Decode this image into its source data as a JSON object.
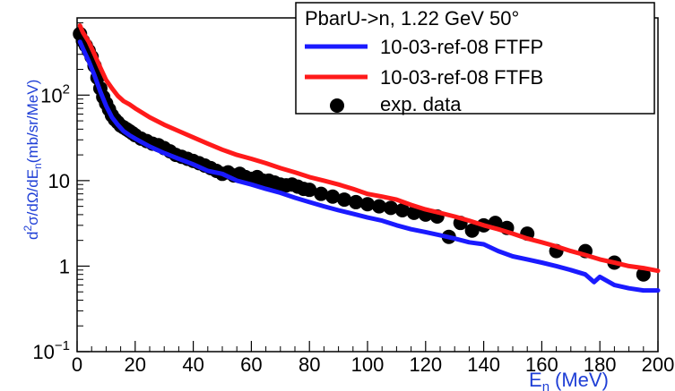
{
  "chart_data": {
    "type": "line",
    "title": "PbarU->n, 1.22 GeV 50°",
    "xlabel_main": "E",
    "xlabel_sub": "n",
    "xlabel_unit": "(MeV)",
    "ylabel_parts": [
      "d",
      "2",
      "σ/dΩ/dE",
      "n",
      "(mb/sr/MeV)"
    ],
    "xlim": [
      0,
      200
    ],
    "ylim": [
      0.1,
      800
    ],
    "yscale": "log",
    "x_ticks": [
      0,
      20,
      40,
      60,
      80,
      100,
      120,
      140,
      160,
      180,
      200
    ],
    "y_tick_labels": [
      {
        "value": 0.1,
        "base": "10",
        "exp": "−1"
      },
      {
        "value": 1,
        "base": "1",
        "exp": ""
      },
      {
        "value": 10,
        "base": "10",
        "exp": ""
      },
      {
        "value": 100,
        "base": "10",
        "exp": "2"
      }
    ],
    "legend_position": "top-right",
    "series": [
      {
        "name": "10-03-ref-08 FTFP",
        "kind": "line",
        "color": "#1a1aff",
        "x": [
          1,
          2,
          4,
          6,
          8,
          10,
          12,
          14,
          16,
          18,
          20,
          25,
          30,
          35,
          40,
          45,
          50,
          55,
          60,
          65,
          70,
          75,
          80,
          85,
          90,
          95,
          100,
          105,
          110,
          115,
          120,
          125,
          130,
          135,
          140,
          145,
          150,
          155,
          160,
          165,
          170,
          175,
          178,
          180,
          185,
          190,
          195,
          200
        ],
        "y": [
          420,
          350,
          250,
          170,
          110,
          75,
          55,
          45,
          38,
          34,
          31,
          25,
          21,
          18,
          15.5,
          13,
          12,
          10,
          9,
          8,
          7.2,
          6.3,
          5.6,
          5,
          4.5,
          4.1,
          3.7,
          3.4,
          3,
          2.7,
          2.5,
          2.3,
          2.1,
          1.9,
          1.8,
          1.5,
          1.3,
          1.2,
          1.1,
          1,
          0.9,
          0.8,
          0.65,
          0.75,
          0.6,
          0.55,
          0.52,
          0.52
        ]
      },
      {
        "name": "10-03-ref-08 FTFB",
        "kind": "line",
        "color": "#ff1a1a",
        "x": [
          1,
          2,
          4,
          6,
          8,
          10,
          12,
          14,
          16,
          18,
          20,
          25,
          30,
          35,
          40,
          45,
          50,
          55,
          60,
          65,
          70,
          75,
          80,
          85,
          90,
          95,
          100,
          105,
          110,
          115,
          120,
          125,
          130,
          135,
          140,
          145,
          150,
          155,
          160,
          165,
          170,
          175,
          180,
          185,
          190,
          195,
          200
        ],
        "y": [
          650,
          540,
          420,
          300,
          210,
          150,
          120,
          98,
          85,
          78,
          70,
          55,
          45,
          38,
          32,
          27,
          23,
          20,
          18,
          16,
          14,
          12.5,
          11,
          10,
          9,
          8,
          7,
          6.5,
          6,
          5.2,
          4.6,
          4.2,
          3.8,
          3.4,
          3,
          2.7,
          2.4,
          2.1,
          1.9,
          1.7,
          1.5,
          1.35,
          1.2,
          1.1,
          1,
          0.95,
          0.88
        ]
      },
      {
        "name": "exp. data",
        "kind": "scatter",
        "color": "#000000",
        "x": [
          1,
          2,
          3,
          4,
          5,
          6,
          7,
          8,
          9,
          10,
          11,
          12,
          13,
          14,
          15,
          16,
          17,
          18,
          19,
          20,
          22,
          24,
          26,
          28,
          30,
          32,
          34,
          36,
          38,
          40,
          42,
          44,
          46,
          48,
          50,
          52,
          54,
          56,
          58,
          60,
          62,
          64,
          66,
          68,
          70,
          72,
          74,
          76,
          78,
          80,
          84,
          88,
          92,
          96,
          100,
          104,
          108,
          112,
          116,
          120,
          124,
          128,
          132,
          136,
          140,
          144,
          148,
          155,
          165,
          175,
          185,
          195
        ],
        "y": [
          520,
          430,
          380,
          330,
          280,
          220,
          160,
          120,
          95,
          80,
          68,
          58,
          52,
          48,
          44,
          42,
          40,
          38,
          36,
          34,
          31,
          29,
          27,
          26,
          24,
          22,
          20,
          19,
          18,
          17,
          16,
          15,
          14,
          13,
          12,
          12.5,
          11.5,
          12,
          11,
          10.5,
          11,
          10,
          10,
          9.5,
          9,
          8.8,
          9,
          8.5,
          8,
          7.8,
          7,
          6.5,
          6,
          5.6,
          5.3,
          5,
          4.8,
          4.5,
          4.2,
          4,
          3.8,
          2.2,
          3.2,
          2.6,
          3,
          3.2,
          2.8,
          2.4,
          1.5,
          1.5,
          1.1,
          0.8
        ]
      }
    ]
  }
}
